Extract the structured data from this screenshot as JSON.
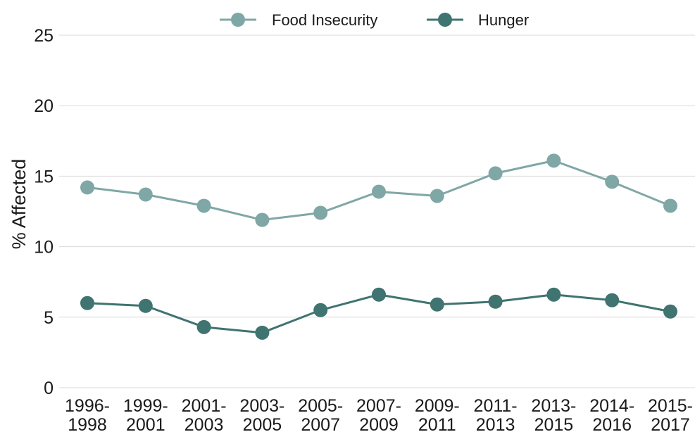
{
  "chart_data": {
    "type": "line",
    "categories": [
      [
        "1996-",
        "1998"
      ],
      [
        "1999-",
        "2001"
      ],
      [
        "2001-",
        "2003"
      ],
      [
        "2003-",
        "2005"
      ],
      [
        "2005-",
        "2007"
      ],
      [
        "2007-",
        "2009"
      ],
      [
        "2009-",
        "2011"
      ],
      [
        "2011-",
        "2013"
      ],
      [
        "2013-",
        "2015"
      ],
      [
        "2014-",
        "2016"
      ],
      [
        "2015-",
        "2017"
      ]
    ],
    "series": [
      {
        "name": "Food Insecurity",
        "color": "#7fa7a6",
        "values": [
          14.2,
          13.7,
          12.9,
          11.9,
          12.4,
          13.9,
          13.6,
          15.2,
          16.1,
          14.6,
          12.9
        ]
      },
      {
        "name": "Hunger",
        "color": "#3f7470",
        "values": [
          6.0,
          5.8,
          4.3,
          3.9,
          5.5,
          6.6,
          5.9,
          6.1,
          6.6,
          6.2,
          5.4
        ]
      }
    ],
    "title": "",
    "xlabel": "",
    "ylabel": "% Affected",
    "ylim": [
      0,
      25
    ],
    "yticks": [
      0,
      5,
      10,
      15,
      20,
      25
    ],
    "grid": true,
    "legend_position": "top-center"
  }
}
